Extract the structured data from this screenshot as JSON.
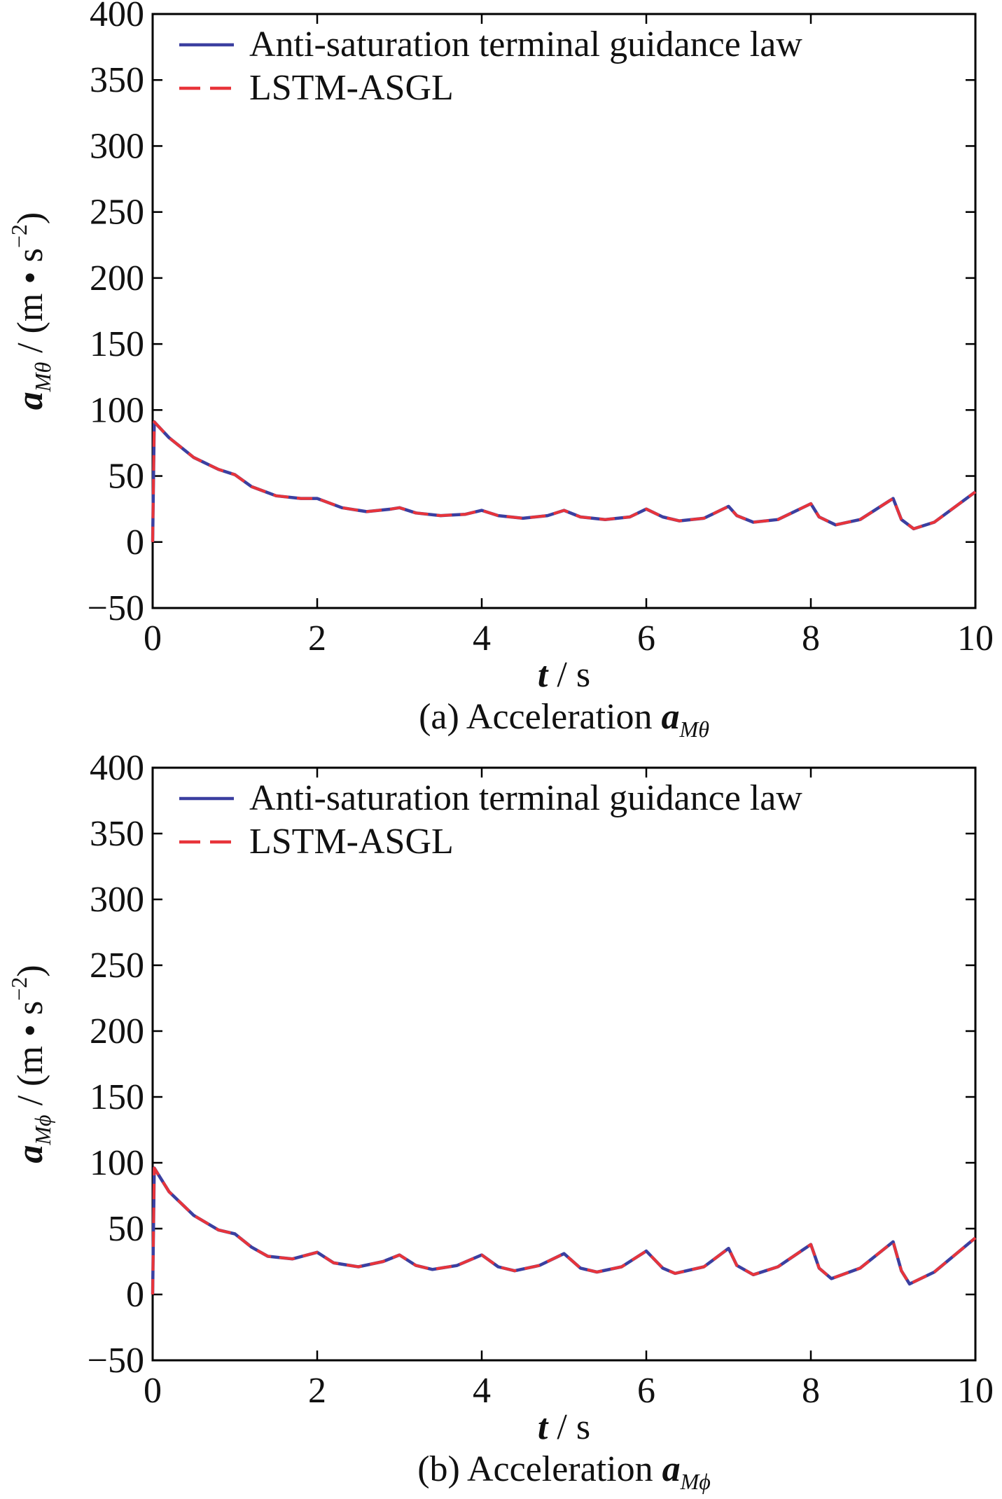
{
  "colors": {
    "series1": "#3b3fa0",
    "series2": "#e8343a",
    "axis": "#000000"
  },
  "chart_data": [
    {
      "type": "line",
      "panel": "a",
      "title": "",
      "caption_prefix": "(a) Acceleration ",
      "caption_symbol": "a",
      "caption_sub": "Mθ",
      "xlabel_var": "t",
      "xlabel_unit": " / s",
      "ylabel_var": "a",
      "ylabel_sub": "Mθ",
      "ylabel_unit": " / (m • s",
      "ylabel_exp": "−2",
      "ylabel_close": ")",
      "xlim": [
        0,
        10
      ],
      "ylim": [
        -50,
        400
      ],
      "xticks": [
        0,
        2,
        4,
        6,
        8,
        10
      ],
      "xtick_labels": [
        "0",
        "2",
        "4",
        "6",
        "8",
        "10"
      ],
      "yticks": [
        -50,
        0,
        50,
        100,
        150,
        200,
        250,
        300,
        350,
        400
      ],
      "ytick_labels": [
        "−50",
        "0",
        "50",
        "100",
        "150",
        "200",
        "250",
        "300",
        "350",
        "400"
      ],
      "legend": [
        "Anti-saturation terminal guidance law",
        "LSTM-ASGL"
      ],
      "legend_location": "top-left",
      "series": [
        {
          "name": "Anti-saturation terminal guidance law",
          "style": "solid",
          "x": [
            0,
            0.02,
            0.2,
            0.5,
            0.8,
            1.0,
            1.2,
            1.5,
            1.8,
            2.0,
            2.3,
            2.6,
            2.9,
            3.0,
            3.2,
            3.5,
            3.8,
            4.0,
            4.2,
            4.5,
            4.8,
            5.0,
            5.2,
            5.5,
            5.8,
            6.0,
            6.2,
            6.4,
            6.7,
            7.0,
            7.1,
            7.3,
            7.6,
            8.0,
            8.1,
            8.3,
            8.6,
            9.0,
            9.1,
            9.25,
            9.5,
            10.0
          ],
          "y": [
            0,
            91,
            79,
            64,
            55,
            51,
            42,
            35,
            33,
            33,
            26,
            23,
            25,
            26,
            22,
            20,
            21,
            24,
            20,
            18,
            20,
            24,
            19,
            17,
            19,
            25,
            19,
            16,
            18,
            27,
            20,
            15,
            17,
            29,
            19,
            13,
            17,
            33,
            17,
            10,
            15,
            38
          ]
        },
        {
          "name": "LSTM-ASGL",
          "style": "dashed",
          "x": [
            0,
            0.02,
            0.2,
            0.5,
            0.8,
            1.0,
            1.2,
            1.5,
            1.8,
            2.0,
            2.3,
            2.6,
            2.9,
            3.0,
            3.2,
            3.5,
            3.8,
            4.0,
            4.2,
            4.5,
            4.8,
            5.0,
            5.2,
            5.5,
            5.8,
            6.0,
            6.2,
            6.4,
            6.7,
            7.0,
            7.1,
            7.3,
            7.6,
            8.0,
            8.1,
            8.3,
            8.6,
            9.0,
            9.1,
            9.25,
            9.5,
            10.0
          ],
          "y": [
            0,
            91,
            79,
            64,
            55,
            51,
            42,
            35,
            33,
            33,
            26,
            23,
            25,
            26,
            22,
            20,
            21,
            24,
            20,
            18,
            20,
            24,
            19,
            17,
            19,
            25,
            19,
            16,
            18,
            27,
            20,
            15,
            17,
            29,
            19,
            13,
            17,
            33,
            17,
            10,
            15,
            38
          ]
        }
      ]
    },
    {
      "type": "line",
      "panel": "b",
      "title": "",
      "caption_prefix": "(b) Acceleration ",
      "caption_symbol": "a",
      "caption_sub": "Mϕ",
      "xlabel_var": "t",
      "xlabel_unit": " / s",
      "ylabel_var": "a",
      "ylabel_sub": "Mϕ",
      "ylabel_unit": " / (m • s",
      "ylabel_exp": "−2",
      "ylabel_close": ")",
      "xlim": [
        0,
        10
      ],
      "ylim": [
        -50,
        400
      ],
      "xticks": [
        0,
        2,
        4,
        6,
        8,
        10
      ],
      "xtick_labels": [
        "0",
        "2",
        "4",
        "6",
        "8",
        "10"
      ],
      "yticks": [
        -50,
        0,
        50,
        100,
        150,
        200,
        250,
        300,
        350,
        400
      ],
      "ytick_labels": [
        "−50",
        "0",
        "50",
        "100",
        "150",
        "200",
        "250",
        "300",
        "350",
        "400"
      ],
      "legend": [
        "Anti-saturation terminal guidance law",
        "LSTM-ASGL"
      ],
      "legend_location": "top-left",
      "series": [
        {
          "name": "Anti-saturation terminal guidance law",
          "style": "solid",
          "x": [
            0,
            0.02,
            0.2,
            0.5,
            0.8,
            1.0,
            1.2,
            1.4,
            1.7,
            2.0,
            2.2,
            2.5,
            2.8,
            3.0,
            3.2,
            3.4,
            3.7,
            4.0,
            4.2,
            4.4,
            4.7,
            5.0,
            5.2,
            5.4,
            5.7,
            6.0,
            6.2,
            6.35,
            6.7,
            7.0,
            7.1,
            7.3,
            7.6,
            8.0,
            8.1,
            8.25,
            8.6,
            9.0,
            9.1,
            9.2,
            9.5,
            10.0
          ],
          "y": [
            0,
            96,
            78,
            60,
            49,
            46,
            36,
            29,
            27,
            32,
            24,
            21,
            25,
            30,
            22,
            19,
            22,
            30,
            21,
            18,
            22,
            31,
            20,
            17,
            21,
            33,
            20,
            16,
            21,
            35,
            22,
            15,
            21,
            38,
            20,
            12,
            20,
            40,
            18,
            8,
            17,
            43
          ]
        },
        {
          "name": "LSTM-ASGL",
          "style": "dashed",
          "x": [
            0,
            0.02,
            0.2,
            0.5,
            0.8,
            1.0,
            1.2,
            1.4,
            1.7,
            2.0,
            2.2,
            2.5,
            2.8,
            3.0,
            3.2,
            3.4,
            3.7,
            4.0,
            4.2,
            4.4,
            4.7,
            5.0,
            5.2,
            5.4,
            5.7,
            6.0,
            6.2,
            6.35,
            6.7,
            7.0,
            7.1,
            7.3,
            7.6,
            8.0,
            8.1,
            8.25,
            8.6,
            9.0,
            9.1,
            9.2,
            9.5,
            10.0
          ],
          "y": [
            0,
            96,
            78,
            60,
            49,
            46,
            36,
            29,
            27,
            32,
            24,
            21,
            25,
            30,
            22,
            19,
            22,
            30,
            21,
            18,
            22,
            31,
            20,
            17,
            21,
            33,
            20,
            16,
            21,
            35,
            22,
            15,
            21,
            38,
            20,
            12,
            20,
            40,
            18,
            8,
            17,
            43
          ]
        }
      ]
    }
  ]
}
